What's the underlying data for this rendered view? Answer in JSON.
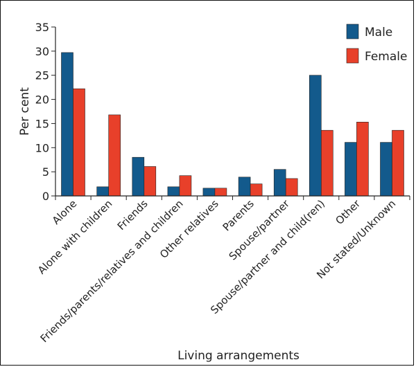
{
  "chart_data": {
    "type": "bar",
    "categories": [
      "Alone",
      "Alone with children",
      "Friends",
      "Friends/parents/relatives and children",
      "Other relatives",
      "Parents",
      "Spouse/partner",
      "Spouse/partner and child(ren)",
      "Other",
      "Not stated/Unknown"
    ],
    "series": [
      {
        "name": "Male",
        "color": "#135a8c",
        "values": [
          29.7,
          1.9,
          8.0,
          1.9,
          1.6,
          3.9,
          5.5,
          25.0,
          11.1,
          11.1
        ]
      },
      {
        "name": "Female",
        "color": "#e8402a",
        "values": [
          22.2,
          16.8,
          6.1,
          4.2,
          1.6,
          2.5,
          3.6,
          13.6,
          15.3,
          13.6
        ]
      }
    ],
    "xlabel": "Living arrangements",
    "ylabel": "Per cent",
    "ylim": [
      0,
      35
    ],
    "yticks": [
      0,
      5,
      10,
      15,
      20,
      25,
      30,
      35
    ],
    "grid": false,
    "legend_position": "top-right"
  }
}
